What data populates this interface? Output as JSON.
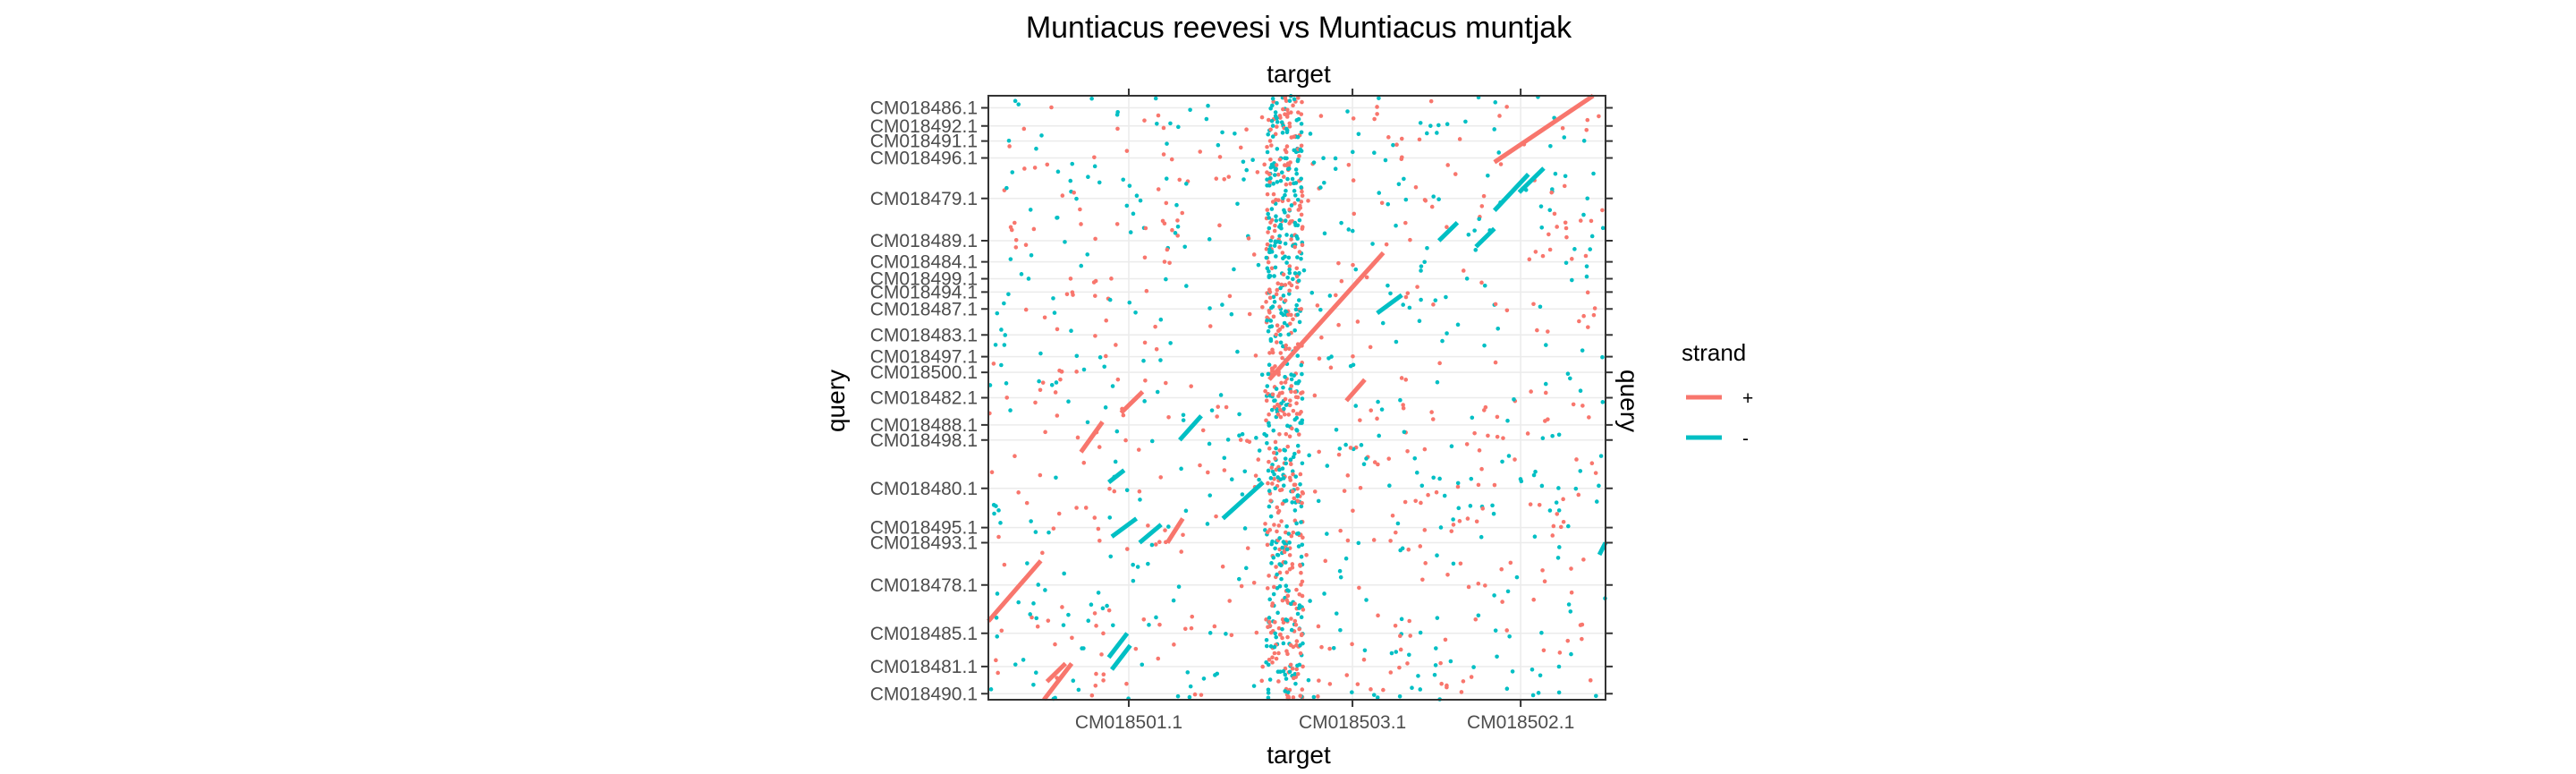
{
  "chart_data": {
    "type": "scatter",
    "title": "Muntiacus reevesi vs Muntiacus muntjak",
    "xlabel_top": "target",
    "xlabel_bottom": "target",
    "ylabel_left": "query",
    "ylabel_right": "query",
    "x_categories": [
      "CM018501.1",
      "CM018503.1",
      "CM018502.1"
    ],
    "x_category_extents": [
      {
        "name": "CM018501.1",
        "start": 0.0,
        "end": 0.455
      },
      {
        "name": "CM018503.1",
        "start": 0.455,
        "end": 0.725
      },
      {
        "name": "CM018502.1",
        "start": 0.725,
        "end": 1.0
      }
    ],
    "y_categories": [
      "CM018486.1",
      "CM018492.1",
      "CM018491.1",
      "CM018496.1",
      "CM018479.1",
      "CM018489.1",
      "CM018484.1",
      "CM018499.1",
      "CM018494.1",
      "CM018487.1",
      "CM018483.1",
      "CM018497.1",
      "CM018500.1",
      "CM018482.1",
      "CM018488.1",
      "CM018498.1",
      "CM018480.1",
      "CM018495.1",
      "CM018493.1",
      "CM018478.1",
      "CM018485.1",
      "CM018481.1",
      "CM018490.1"
    ],
    "y_category_centers": [
      0.98,
      0.95,
      0.925,
      0.897,
      0.83,
      0.76,
      0.725,
      0.697,
      0.675,
      0.647,
      0.604,
      0.568,
      0.542,
      0.5,
      0.455,
      0.43,
      0.35,
      0.285,
      0.26,
      0.19,
      0.11,
      0.055,
      0.01
    ],
    "grid": true,
    "legend": {
      "title": "strand",
      "position": "right",
      "entries": [
        {
          "label": "+",
          "color": "#F8766D"
        },
        {
          "label": "-",
          "color": "#00BFC4"
        }
      ]
    },
    "colors": {
      "plus": "#F8766D",
      "minus": "#00BFC4"
    },
    "segments": [
      {
        "strand": "+",
        "x": [
          0.0,
          0.085
        ],
        "y": [
          0.13,
          0.23
        ]
      },
      {
        "strand": "+",
        "x": [
          0.09,
          0.135
        ],
        "y": [
          0.0,
          0.06
        ]
      },
      {
        "strand": "+",
        "x": [
          0.095,
          0.125
        ],
        "y": [
          0.03,
          0.06
        ]
      },
      {
        "strand": "+",
        "x": [
          0.15,
          0.185
        ],
        "y": [
          0.41,
          0.46
        ]
      },
      {
        "strand": "+",
        "x": [
          0.215,
          0.25
        ],
        "y": [
          0.475,
          0.51
        ]
      },
      {
        "strand": "+",
        "x": [
          0.29,
          0.315
        ],
        "y": [
          0.26,
          0.3
        ]
      },
      {
        "strand": "+",
        "x": [
          0.455,
          0.64
        ],
        "y": [
          0.53,
          0.74
        ]
      },
      {
        "strand": "+",
        "x": [
          0.58,
          0.61
        ],
        "y": [
          0.495,
          0.53
        ]
      },
      {
        "strand": "+",
        "x": [
          0.82,
          0.98
        ],
        "y": [
          0.89,
          1.0
        ]
      },
      {
        "strand": "-",
        "x": [
          0.245,
          0.28
        ],
        "y": [
          0.26,
          0.29
        ]
      },
      {
        "strand": "-",
        "x": [
          0.2,
          0.23
        ],
        "y": [
          0.05,
          0.09
        ]
      },
      {
        "strand": "-",
        "x": [
          0.195,
          0.22
        ],
        "y": [
          0.36,
          0.38
        ]
      },
      {
        "strand": "-",
        "x": [
          0.31,
          0.345
        ],
        "y": [
          0.43,
          0.47
        ]
      },
      {
        "strand": "-",
        "x": [
          0.38,
          0.445
        ],
        "y": [
          0.3,
          0.36
        ]
      },
      {
        "strand": "-",
        "x": [
          0.2,
          0.24
        ],
        "y": [
          0.27,
          0.3
        ]
      },
      {
        "strand": "-",
        "x": [
          0.195,
          0.225
        ],
        "y": [
          0.07,
          0.11
        ]
      },
      {
        "strand": "-",
        "x": [
          0.63,
          0.67
        ],
        "y": [
          0.64,
          0.67
        ]
      },
      {
        "strand": "-",
        "x": [
          0.73,
          0.76
        ],
        "y": [
          0.76,
          0.79
        ]
      },
      {
        "strand": "-",
        "x": [
          0.79,
          0.82
        ],
        "y": [
          0.75,
          0.78
        ]
      },
      {
        "strand": "-",
        "x": [
          0.82,
          0.875
        ],
        "y": [
          0.81,
          0.87
        ]
      },
      {
        "strand": "-",
        "x": [
          0.86,
          0.9
        ],
        "y": [
          0.84,
          0.88
        ]
      },
      {
        "strand": "-",
        "x": [
          0.99,
          1.0
        ],
        "y": [
          0.24,
          0.26
        ]
      }
    ],
    "points_note_free": true,
    "point_density_band": {
      "x_start": 0.45,
      "x_end": 0.51
    }
  }
}
